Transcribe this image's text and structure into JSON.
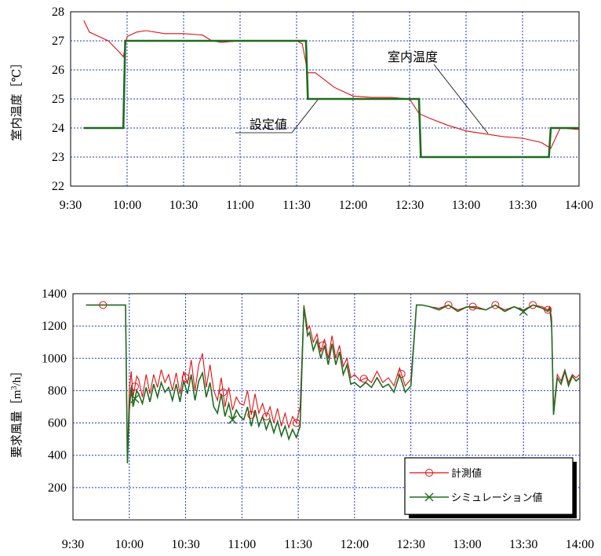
{
  "chart_data": [
    {
      "type": "line",
      "ylabel": "室内温度［℃］",
      "ylim": [
        22,
        28
      ],
      "yticks": [
        "22",
        "23",
        "24",
        "25",
        "26",
        "27",
        "28"
      ],
      "xlim": [
        "9:30",
        "14:00"
      ],
      "xticks": [
        "9:30",
        "10:00",
        "10:30",
        "11:00",
        "11:30",
        "12:00",
        "12:30",
        "13:00",
        "13:30",
        "14:00"
      ],
      "grid": true,
      "annotations": [
        "室内温度",
        "設定値"
      ],
      "colors": {
        "measured": "#dd1111",
        "setpoint": "#1f6b1f"
      },
      "series": [
        {
          "name": "室内温度",
          "x": [
            "9:37",
            "9:40",
            "9:45",
            "9:50",
            "9:56",
            "9:58",
            "10:00",
            "10:05",
            "10:10",
            "10:20",
            "10:30",
            "10:40",
            "10:45",
            "10:50",
            "11:00",
            "11:10",
            "11:20",
            "11:30",
            "11:33",
            "11:36",
            "11:40",
            "11:50",
            "12:00",
            "12:10",
            "12:20",
            "12:30",
            "12:35",
            "12:40",
            "12:50",
            "13:00",
            "13:10",
            "13:20",
            "13:30",
            "13:40",
            "13:45",
            "13:50",
            "14:00"
          ],
          "values": [
            27.7,
            27.3,
            27.15,
            27.0,
            26.6,
            26.45,
            27.15,
            27.3,
            27.35,
            27.25,
            27.25,
            27.2,
            27.0,
            26.95,
            27.0,
            27.0,
            27.0,
            27.0,
            26.9,
            25.9,
            25.9,
            25.4,
            25.1,
            25.05,
            25.05,
            25.0,
            24.5,
            24.35,
            24.1,
            23.9,
            23.8,
            23.7,
            23.65,
            23.5,
            23.3,
            24.0,
            23.95
          ]
        },
        {
          "name": "設定値",
          "x": [
            "9:37",
            "9:58",
            "9:59",
            "11:35",
            "11:36",
            "12:35",
            "12:36",
            "13:44",
            "13:45",
            "14:00"
          ],
          "values": [
            24,
            24,
            27,
            27,
            25,
            25,
            23,
            23,
            24,
            24
          ]
        }
      ]
    },
    {
      "type": "line",
      "ylabel": "要求風量［m³/h］",
      "ylim": [
        0,
        1400
      ],
      "yticks": [
        "200",
        "400",
        "600",
        "800",
        "1000",
        "1200",
        "1400"
      ],
      "xlim": [
        "9:30",
        "14:00"
      ],
      "xticks": [
        "9:30",
        "10:00",
        "10:30",
        "11:00",
        "11:30",
        "12:00",
        "12:30",
        "13:00",
        "13:30",
        "14:00"
      ],
      "grid": true,
      "legend": "bottom-right",
      "colors": {
        "measured": "#dd1111",
        "sim": "#1f6b1f"
      },
      "series": [
        {
          "name": "計測値",
          "x": [
            "9:37",
            "9:46",
            "9:54",
            "9:57",
            "9:58",
            "9:59",
            "10:00",
            "10:01",
            "10:02",
            "10:04",
            "10:05",
            "10:07",
            "10:09",
            "10:11",
            "10:13",
            "10:15",
            "10:17",
            "10:19",
            "10:21",
            "10:23",
            "10:25",
            "10:27",
            "10:29",
            "10:31",
            "10:33",
            "10:35",
            "10:37",
            "10:39",
            "10:41",
            "10:43",
            "10:45",
            "10:47",
            "10:49",
            "10:51",
            "10:53",
            "10:55",
            "10:57",
            "10:59",
            "11:01",
            "11:03",
            "11:05",
            "11:07",
            "11:09",
            "11:11",
            "11:13",
            "11:15",
            "11:17",
            "11:19",
            "11:21",
            "11:23",
            "11:25",
            "11:27",
            "11:29",
            "11:31",
            "11:33",
            "11:35",
            "11:36",
            "11:38",
            "11:40",
            "11:42",
            "11:44",
            "11:46",
            "11:48",
            "11:50",
            "11:52",
            "11:54",
            "11:56",
            "11:58",
            "12:00",
            "12:03",
            "12:06",
            "12:09",
            "12:12",
            "12:15",
            "12:18",
            "12:21",
            "12:24",
            "12:27",
            "12:30",
            "12:33",
            "12:36",
            "12:40",
            "12:45",
            "12:50",
            "12:55",
            "13:00",
            "13:05",
            "13:10",
            "13:15",
            "13:20",
            "13:25",
            "13:30",
            "13:35",
            "13:40",
            "13:43",
            "13:44",
            "13:45",
            "13:46",
            "13:48",
            "13:50",
            "13:52",
            "13:54",
            "13:56",
            "13:58",
            "14:00"
          ],
          "values": [
            1330,
            1330,
            1330,
            1330,
            1330,
            380,
            800,
            920,
            760,
            890,
            870,
            760,
            900,
            780,
            900,
            820,
            930,
            850,
            900,
            800,
            910,
            780,
            920,
            840,
            990,
            800,
            960,
            1030,
            820,
            960,
            800,
            740,
            880,
            700,
            820,
            680,
            760,
            720,
            710,
            800,
            650,
            780,
            660,
            720,
            640,
            700,
            600,
            690,
            580,
            660,
            570,
            640,
            600,
            700,
            1330,
            1180,
            1200,
            1100,
            1150,
            1040,
            1120,
            1000,
            1140,
            1000,
            1080,
            950,
            1000,
            880,
            900,
            860,
            880,
            850,
            920,
            850,
            880,
            830,
            940,
            830,
            870,
            1330,
            1330,
            1320,
            1310,
            1330,
            1300,
            1320,
            1320,
            1300,
            1330,
            1300,
            1320,
            1300,
            1330,
            1320,
            1300,
            1320,
            1250,
            680,
            900,
            860,
            930,
            850,
            900,
            880,
            900
          ]
        },
        {
          "name": "シミュレーション値",
          "x": [
            "9:37",
            "9:46",
            "9:54",
            "9:57",
            "9:58",
            "9:59",
            "10:00",
            "10:01",
            "10:02",
            "10:04",
            "10:05",
            "10:07",
            "10:09",
            "10:11",
            "10:13",
            "10:15",
            "10:17",
            "10:19",
            "10:21",
            "10:23",
            "10:25",
            "10:27",
            "10:29",
            "10:31",
            "10:33",
            "10:35",
            "10:37",
            "10:39",
            "10:41",
            "10:43",
            "10:45",
            "10:47",
            "10:49",
            "10:51",
            "10:53",
            "10:55",
            "10:57",
            "10:59",
            "11:01",
            "11:03",
            "11:05",
            "11:07",
            "11:09",
            "11:11",
            "11:13",
            "11:15",
            "11:17",
            "11:19",
            "11:21",
            "11:23",
            "11:25",
            "11:27",
            "11:29",
            "11:31",
            "11:33",
            "11:35",
            "11:36",
            "11:38",
            "11:40",
            "11:42",
            "11:44",
            "11:46",
            "11:48",
            "11:50",
            "11:52",
            "11:54",
            "11:56",
            "11:58",
            "12:00",
            "12:03",
            "12:06",
            "12:09",
            "12:12",
            "12:15",
            "12:18",
            "12:21",
            "12:24",
            "12:27",
            "12:30",
            "12:33",
            "12:36",
            "12:40",
            "12:45",
            "12:50",
            "12:55",
            "13:00",
            "13:05",
            "13:10",
            "13:15",
            "13:20",
            "13:25",
            "13:30",
            "13:35",
            "13:40",
            "13:43",
            "13:44",
            "13:45",
            "13:46",
            "13:48",
            "13:50",
            "13:52",
            "13:54",
            "13:56",
            "13:58",
            "14:00"
          ],
          "values": [
            1330,
            1330,
            1330,
            1330,
            1330,
            350,
            680,
            820,
            700,
            800,
            780,
            720,
            820,
            730,
            840,
            760,
            850,
            790,
            820,
            740,
            840,
            730,
            860,
            780,
            900,
            740,
            860,
            910,
            760,
            850,
            700,
            660,
            780,
            640,
            720,
            620,
            680,
            640,
            620,
            700,
            580,
            680,
            580,
            640,
            560,
            620,
            540,
            610,
            520,
            580,
            500,
            560,
            510,
            580,
            1320,
            1140,
            1160,
            1050,
            1110,
            1000,
            1080,
            960,
            1090,
            960,
            1040,
            900,
            960,
            840,
            850,
            820,
            850,
            820,
            880,
            820,
            840,
            790,
            900,
            790,
            830,
            1330,
            1330,
            1320,
            1300,
            1330,
            1290,
            1320,
            1310,
            1300,
            1330,
            1290,
            1320,
            1290,
            1330,
            1310,
            1290,
            1310,
            1200,
            650,
            880,
            840,
            920,
            830,
            890,
            860,
            880
          ]
        }
      ],
      "markers": {
        "計測値": [
          "9:46",
          "10:03",
          "10:30",
          "10:50",
          "11:05",
          "11:13",
          "11:29",
          "11:43",
          "12:05",
          "12:25",
          "12:50",
          "13:03",
          "13:15",
          "13:35",
          "13:43"
        ],
        "シミュレーション値": [
          "10:03",
          "10:55",
          "13:30"
        ]
      }
    }
  ]
}
